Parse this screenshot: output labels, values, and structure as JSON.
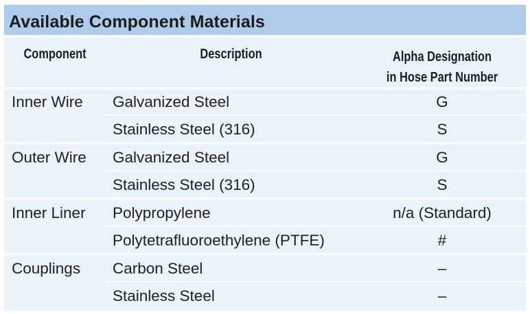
{
  "table": {
    "title": "Available Component Materials",
    "headers": {
      "component": "Component",
      "description": "Description",
      "alpha_line1": "Alpha Designation",
      "alpha_line2": "in Hose Part Number"
    },
    "rows": [
      {
        "component": "Inner Wire",
        "description": "Galvanized Steel",
        "alpha": "G"
      },
      {
        "component": "",
        "description": "Stainless Steel (316)",
        "alpha": "S"
      },
      {
        "component": "Outer Wire",
        "description": "Galvanized Steel",
        "alpha": "G"
      },
      {
        "component": "",
        "description": "Stainless Steel (316)",
        "alpha": "S"
      },
      {
        "component": "Inner Liner",
        "description": "Polypropylene",
        "alpha": "n/a (Standard)"
      },
      {
        "component": "",
        "description": "Polytetrafluoroethylene (PTFE)",
        "alpha": "#"
      },
      {
        "component": "Couplings",
        "description": "Carbon Steel",
        "alpha": "–"
      },
      {
        "component": "",
        "description": "Stainless Steel",
        "alpha": "–"
      }
    ]
  }
}
